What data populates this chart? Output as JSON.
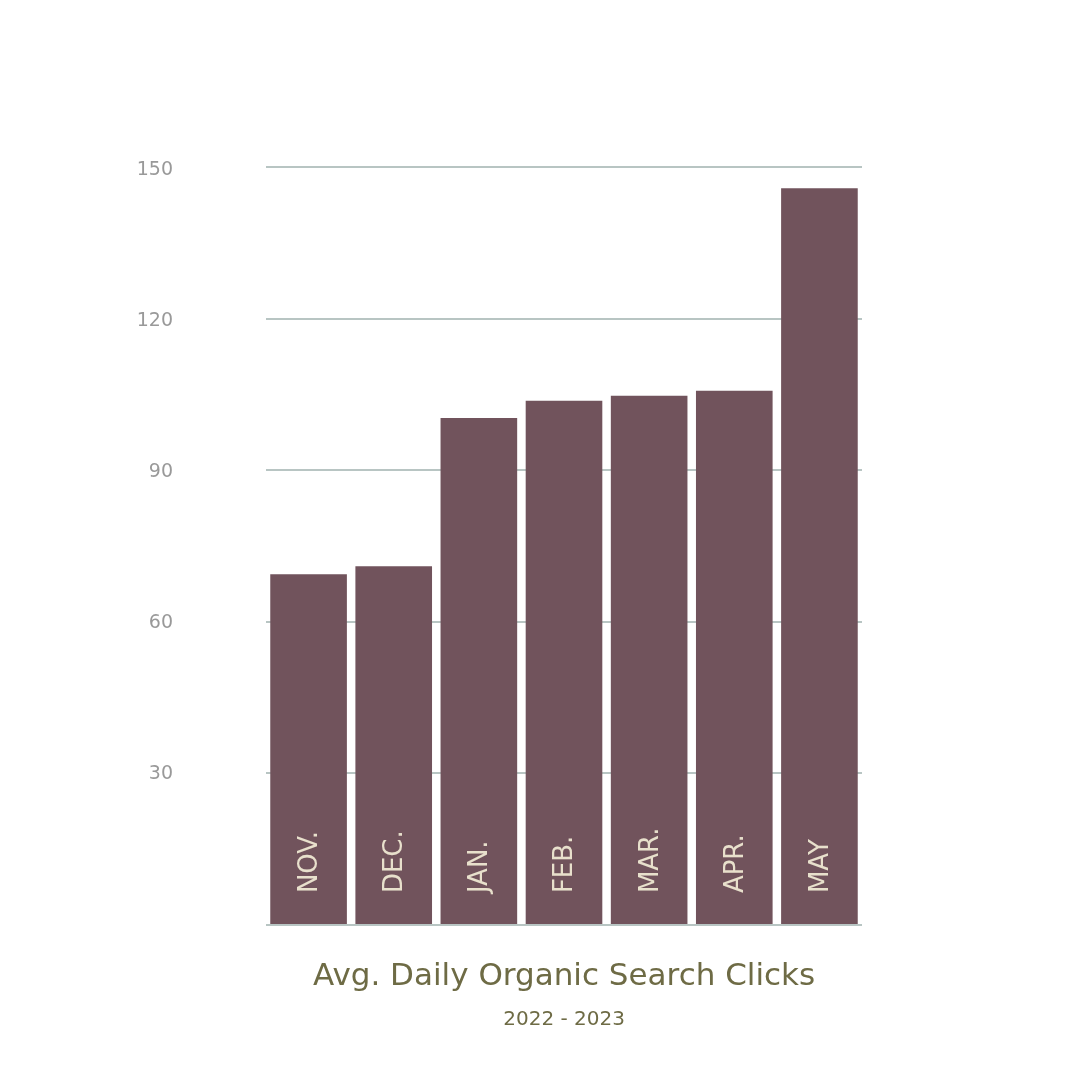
{
  "chart_data": {
    "type": "bar",
    "title": "Avg. Daily Organic Search Clicks",
    "subtitle": "2022 - 2023",
    "categories": [
      "NOV.",
      "DEC.",
      "JAN.",
      "FEB.",
      "MAR.",
      "APR.",
      "MAY"
    ],
    "values": [
      69.4,
      71.0,
      100.4,
      103.8,
      104.8,
      105.8,
      146.0
    ],
    "color": "#71535c",
    "ylim": [
      0,
      150
    ],
    "yticks": [
      30,
      60,
      90,
      120,
      150
    ],
    "grid": "y"
  }
}
